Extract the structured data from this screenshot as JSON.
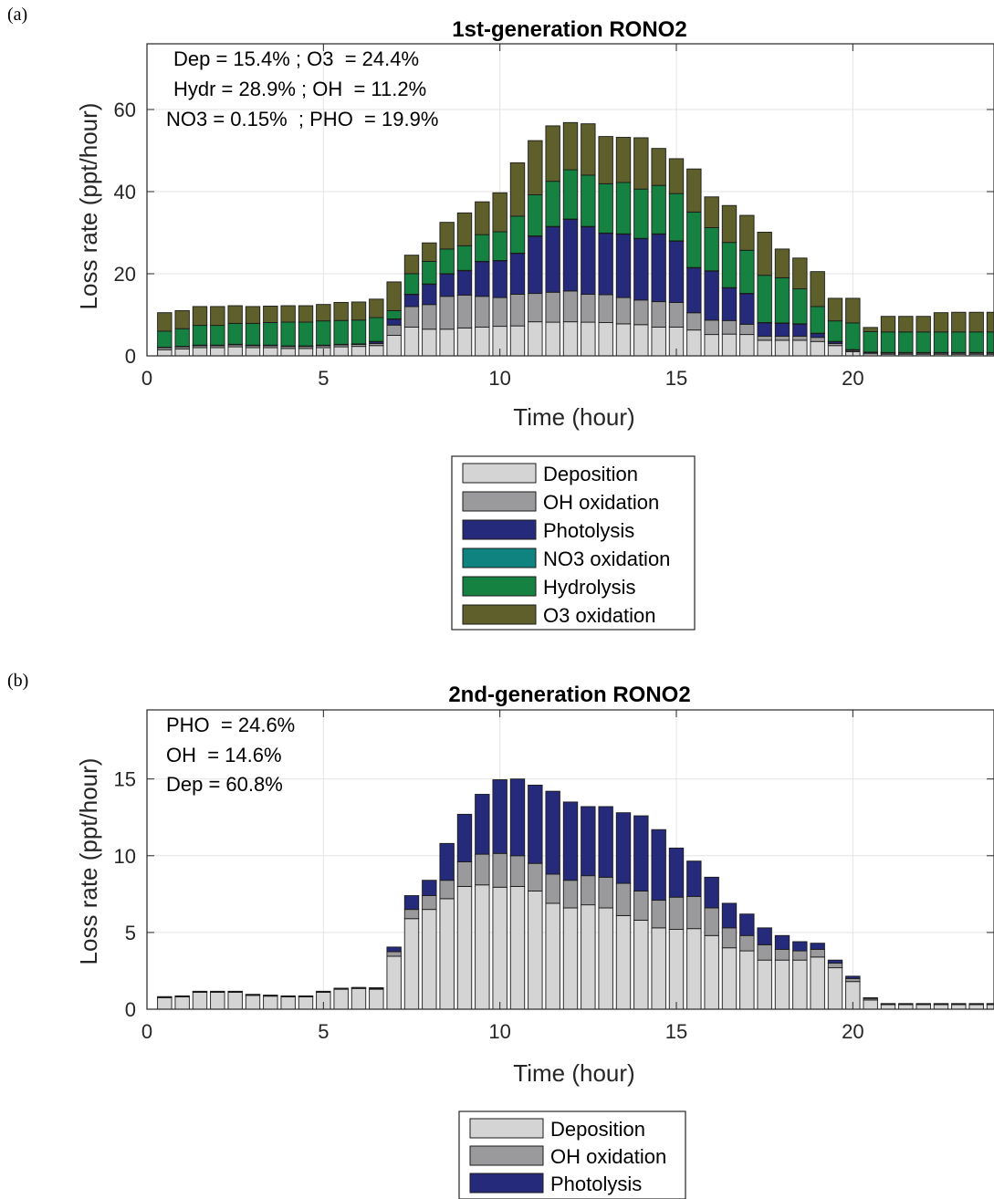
{
  "chart_data": [
    {
      "panel_label": "(a)",
      "type": "bar",
      "stacked": true,
      "title": "1st-generation RONO2",
      "xlabel": "Time (hour)",
      "ylabel": "Loss rate (ppt/hour)",
      "xlim": [
        0,
        24
      ],
      "ylim": [
        0,
        76
      ],
      "xticks": [
        "0",
        "5",
        "10",
        "15",
        "20"
      ],
      "xtick_values": [
        0,
        5,
        10,
        15,
        20
      ],
      "yticks": [
        "0",
        "20",
        "40",
        "60"
      ],
      "ytick_values": [
        0,
        20,
        40,
        60
      ],
      "grid": true,
      "legend_placement": "below",
      "annotations": [
        "Dep = 15.4% ; O3  = 24.4%",
        "Hydr = 28.9% ; OH  = 11.2%",
        "NO3 = 0.15%  ; PHO  = 19.9%"
      ],
      "x": [
        0.5,
        1.0,
        1.5,
        2.0,
        2.5,
        3.0,
        3.5,
        4.0,
        4.5,
        5.0,
        5.5,
        6.0,
        6.5,
        7.0,
        7.5,
        8.0,
        8.5,
        9.0,
        9.5,
        10.0,
        10.5,
        11.0,
        11.5,
        12.0,
        12.5,
        13.0,
        13.5,
        14.0,
        14.5,
        15.0,
        15.5,
        16.0,
        16.5,
        17.0,
        17.5,
        18.0,
        18.5,
        19.0,
        19.5,
        20.0,
        20.5,
        21.0,
        21.5,
        22.0,
        22.5,
        23.0,
        23.5,
        24.0
      ],
      "series": [
        {
          "name": "Deposition",
          "color": "#d4d4d4",
          "values": [
            1.5,
            1.7,
            2.0,
            2.0,
            2.2,
            2.0,
            2.0,
            1.8,
            1.8,
            2.0,
            2.2,
            2.3,
            2.5,
            5.0,
            7.0,
            6.5,
            6.5,
            6.8,
            7.0,
            7.2,
            7.3,
            8.3,
            8.2,
            8.3,
            8.2,
            8.1,
            7.8,
            7.6,
            7.0,
            7.0,
            6.3,
            5.2,
            5.3,
            5.2,
            3.8,
            3.8,
            3.8,
            3.5,
            2.5,
            1.0,
            0.5,
            0.4,
            0.4,
            0.4,
            0.4,
            0.4,
            0.4,
            0.4
          ]
        },
        {
          "name": "OH oxidation",
          "color": "#9a9a9c",
          "values": [
            0.5,
            0.5,
            0.5,
            0.5,
            0.5,
            0.5,
            0.5,
            0.5,
            0.5,
            0.5,
            0.5,
            0.5,
            0.5,
            2.5,
            5.0,
            6.0,
            8.0,
            8.0,
            7.5,
            7.0,
            7.7,
            6.9,
            7.3,
            7.5,
            6.8,
            6.8,
            6.4,
            6.0,
            6.2,
            6.0,
            4.2,
            3.5,
            3.3,
            2.5,
            1.0,
            1.0,
            1.0,
            1.0,
            0.5,
            0.3,
            0.3,
            0.3,
            0.3,
            0.3,
            0.3,
            0.3,
            0.3,
            0.3
          ]
        },
        {
          "name": "Photolysis",
          "color": "#262a7a",
          "values": [
            0.1,
            0.1,
            0.1,
            0.1,
            0.1,
            0.1,
            0.1,
            0.1,
            0.1,
            0.1,
            0.1,
            0.1,
            0.5,
            1.5,
            3.0,
            5.0,
            5.5,
            6.0,
            8.5,
            9.0,
            10.0,
            14.0,
            16.0,
            17.5,
            16.5,
            15.0,
            15.5,
            15.0,
            16.5,
            15.0,
            11.0,
            12.0,
            8.0,
            7.5,
            3.3,
            3.2,
            3.0,
            1.0,
            0.5,
            0.2,
            0.1,
            0.1,
            0.1,
            0.1,
            0.1,
            0.1,
            0.1,
            0.1
          ]
        },
        {
          "name": "NO3 oxidation",
          "color": "#0f8380",
          "values": [
            0.02,
            0.02,
            0.02,
            0.02,
            0.02,
            0.02,
            0.02,
            0.02,
            0.02,
            0.02,
            0.02,
            0.02,
            0.02,
            0.02,
            0.02,
            0.02,
            0.02,
            0.02,
            0.02,
            0.02,
            0.02,
            0.02,
            0.02,
            0.02,
            0.02,
            0.02,
            0.02,
            0.02,
            0.02,
            0.02,
            0.02,
            0.02,
            0.02,
            0.02,
            0.02,
            0.02,
            0.02,
            0.02,
            0.02,
            0.02,
            0.02,
            0.02,
            0.02,
            0.02,
            0.02,
            0.02,
            0.02,
            0.02
          ]
        },
        {
          "name": "Hydrolysis",
          "color": "#158242",
          "values": [
            3.9,
            4.3,
            4.8,
            4.8,
            5.1,
            5.3,
            5.5,
            5.8,
            5.8,
            5.9,
            5.8,
            5.8,
            5.8,
            2.0,
            5.0,
            5.5,
            6.0,
            6.0,
            6.5,
            7.0,
            9.0,
            10.0,
            11.0,
            12.0,
            12.5,
            12.0,
            12.5,
            12.0,
            11.8,
            11.5,
            13.5,
            10.5,
            11.0,
            10.5,
            11.5,
            11.0,
            8.5,
            6.5,
            5.0,
            6.5,
            5.0,
            5.0,
            5.0,
            5.0,
            5.0,
            5.0,
            5.0,
            5.0
          ]
        },
        {
          "name": "O3 oxidation",
          "color": "#5e5f2b",
          "values": [
            4.5,
            4.4,
            4.6,
            4.6,
            4.3,
            4.1,
            4.0,
            4.0,
            4.0,
            4.0,
            4.4,
            4.4,
            4.5,
            7.0,
            4.5,
            4.5,
            6.5,
            8.0,
            8.0,
            9.5,
            13.0,
            13.2,
            13.5,
            11.5,
            12.5,
            11.5,
            11.0,
            12.5,
            9.0,
            8.5,
            10.5,
            7.5,
            9.0,
            8.5,
            10.5,
            7.0,
            7.5,
            8.5,
            5.5,
            6.0,
            1.0,
            3.8,
            3.8,
            3.8,
            4.7,
            4.8,
            4.8,
            4.8
          ]
        }
      ]
    },
    {
      "panel_label": "(b)",
      "type": "bar",
      "stacked": true,
      "title": "2nd-generation RONO2",
      "xlabel": "Time (hour)",
      "ylabel": "Loss rate (ppt/hour)",
      "xlim": [
        0,
        24
      ],
      "ylim": [
        0,
        19.5
      ],
      "xticks": [
        "0",
        "5",
        "10",
        "15",
        "20"
      ],
      "xtick_values": [
        0,
        5,
        10,
        15,
        20
      ],
      "yticks": [
        "0",
        "5",
        "10",
        "15"
      ],
      "ytick_values": [
        0,
        5,
        10,
        15
      ],
      "grid": true,
      "legend_placement": "below",
      "annotations": [
        "PHO  = 24.6%",
        "OH  = 14.6%",
        "Dep = 60.8%"
      ],
      "x": [
        0.5,
        1.0,
        1.5,
        2.0,
        2.5,
        3.0,
        3.5,
        4.0,
        4.5,
        5.0,
        5.5,
        6.0,
        6.5,
        7.0,
        7.5,
        8.0,
        8.5,
        9.0,
        9.5,
        10.0,
        10.5,
        11.0,
        11.5,
        12.0,
        12.5,
        13.0,
        13.5,
        14.0,
        14.5,
        15.0,
        15.5,
        16.0,
        16.5,
        17.0,
        17.5,
        18.0,
        18.5,
        19.0,
        19.5,
        20.0,
        20.5,
        21.0,
        21.5,
        22.0,
        22.5,
        23.0,
        23.5,
        24.0
      ],
      "series": [
        {
          "name": "Deposition",
          "color": "#d4d4d4",
          "values": [
            0.75,
            0.8,
            1.1,
            1.1,
            1.1,
            0.9,
            0.85,
            0.8,
            0.8,
            1.1,
            1.3,
            1.35,
            1.3,
            3.45,
            5.9,
            6.5,
            7.2,
            8.0,
            8.1,
            7.95,
            8.0,
            7.7,
            6.9,
            6.6,
            6.8,
            6.6,
            6.1,
            5.8,
            5.3,
            5.2,
            5.25,
            4.8,
            4.0,
            3.8,
            3.2,
            3.2,
            3.2,
            3.4,
            2.7,
            1.8,
            0.6,
            0.3,
            0.3,
            0.3,
            0.3,
            0.3,
            0.3,
            0.3
          ]
        },
        {
          "name": "OH oxidation",
          "color": "#9a9a9c",
          "values": [
            0.05,
            0.05,
            0.05,
            0.05,
            0.05,
            0.05,
            0.05,
            0.05,
            0.05,
            0.05,
            0.05,
            0.05,
            0.05,
            0.3,
            0.6,
            0.9,
            1.2,
            1.6,
            2.0,
            2.2,
            2.0,
            1.8,
            1.9,
            1.8,
            1.9,
            2.0,
            2.1,
            1.9,
            1.8,
            2.1,
            2.1,
            1.8,
            1.3,
            1.0,
            1.0,
            0.7,
            0.6,
            0.5,
            0.3,
            0.2,
            0.1,
            0.05,
            0.05,
            0.05,
            0.05,
            0.05,
            0.05,
            0.05
          ]
        },
        {
          "name": "Photolysis",
          "color": "#262a7a",
          "values": [
            0.02,
            0.02,
            0.02,
            0.02,
            0.02,
            0.02,
            0.02,
            0.02,
            0.02,
            0.02,
            0.02,
            0.02,
            0.05,
            0.3,
            0.9,
            1.0,
            2.4,
            3.1,
            3.9,
            4.8,
            5.0,
            5.1,
            5.4,
            5.1,
            4.5,
            4.6,
            4.6,
            4.9,
            4.6,
            3.2,
            2.3,
            2.0,
            1.6,
            1.4,
            1.1,
            0.9,
            0.6,
            0.4,
            0.2,
            0.15,
            0.05,
            0.02,
            0.02,
            0.02,
            0.02,
            0.02,
            0.02,
            0.02
          ]
        }
      ]
    }
  ]
}
